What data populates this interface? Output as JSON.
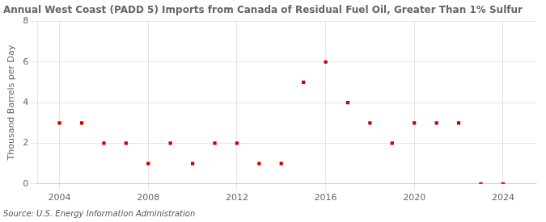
{
  "chart_data": {
    "type": "scatter",
    "title": "Annual West Coast (PADD 5) Imports from Canada of Residual Fuel Oil, Greater Than 1% Sulfur",
    "ylabel": "Thousand Barrels per Day",
    "annotation": "Source: U.S. Energy Information Administration",
    "x": [
      2004,
      2005,
      2006,
      2007,
      2008,
      2009,
      2010,
      2011,
      2012,
      2013,
      2014,
      2015,
      2016,
      2017,
      2018,
      2019,
      2020,
      2021,
      2022,
      2023,
      2024
    ],
    "values": [
      3,
      3,
      2,
      2,
      1,
      2,
      1,
      2,
      2,
      1,
      1,
      5,
      6,
      4,
      3,
      2,
      3,
      3,
      3,
      0,
      0
    ],
    "color": "#cc0000",
    "marker": "square",
    "xlim": [
      2003.0,
      2025.5
    ],
    "xticks": [
      2004,
      2008,
      2012,
      2016,
      2020,
      2024
    ],
    "ylim": [
      0,
      8
    ],
    "yticks": [
      0,
      2,
      4,
      6,
      8
    ],
    "grid": true
  }
}
